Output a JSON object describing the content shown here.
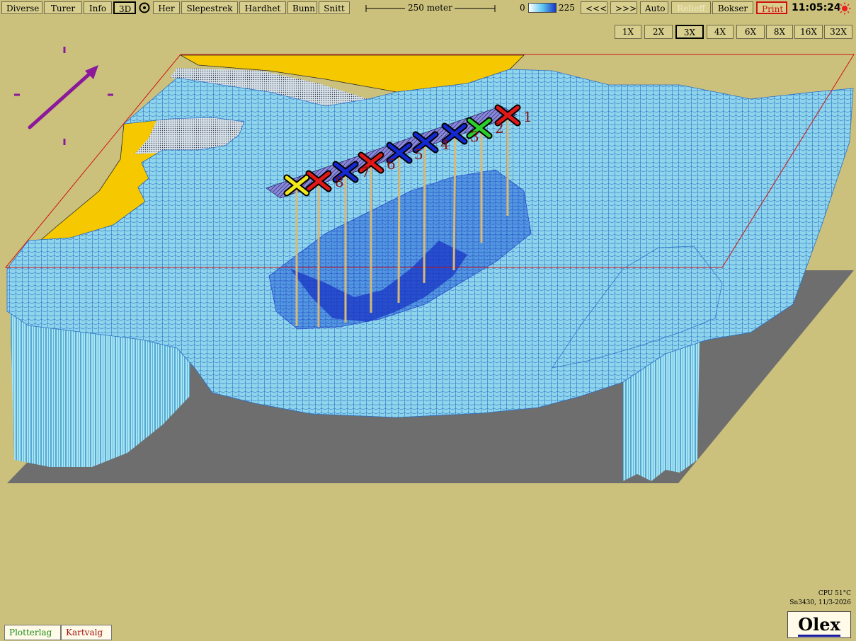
{
  "toolbar": {
    "diverse": "Diverse",
    "turer": "Turer",
    "info": "Info",
    "three_d": "3D",
    "her": "Her",
    "slepestrek": "Slepestrek",
    "hardhet": "Hardhet",
    "bunn": "Bunn",
    "snitt": "Snitt",
    "scale_label": "250 meter",
    "depth_min": "0",
    "depth_max": "225",
    "back": "<<<",
    "forward": ">>>",
    "auto": "Auto",
    "relieff": "Relieff",
    "bokser": "Bokser",
    "print": "Print",
    "time": "11:05:24"
  },
  "zoom": {
    "levels": [
      "1X",
      "2X",
      "3X",
      "4X",
      "6X",
      "8X",
      "16X",
      "32X"
    ],
    "active": "3X"
  },
  "markers": [
    {
      "label": "1",
      "color": "#e01818"
    },
    {
      "label": "2",
      "color": "#2ad02a"
    },
    {
      "label": "3",
      "color": "#1428d0"
    },
    {
      "label": "4",
      "color": "#1428d0"
    },
    {
      "label": "5",
      "color": "#1428d0"
    },
    {
      "label": "6",
      "color": "#e01818"
    },
    {
      "label": "7",
      "color": "#1428d0"
    },
    {
      "label": "8",
      "color": "#e01818"
    },
    {
      "label": "",
      "color": "#f2e81a"
    }
  ],
  "status": {
    "cpu": "CPU 51°C",
    "serial": "Sn3430, 11/3-2026"
  },
  "bottom": {
    "plotterlag": "Plotterlag",
    "kartvalg": "Kartvalg",
    "brand": "Olex"
  },
  "colors": {
    "background": "#cbc17d",
    "land": "#f5c800",
    "water_light": "#8fd6ec",
    "water_deep": "#1a36c4",
    "floor": "#6e6e6e",
    "compass": "#8a1a9a"
  }
}
